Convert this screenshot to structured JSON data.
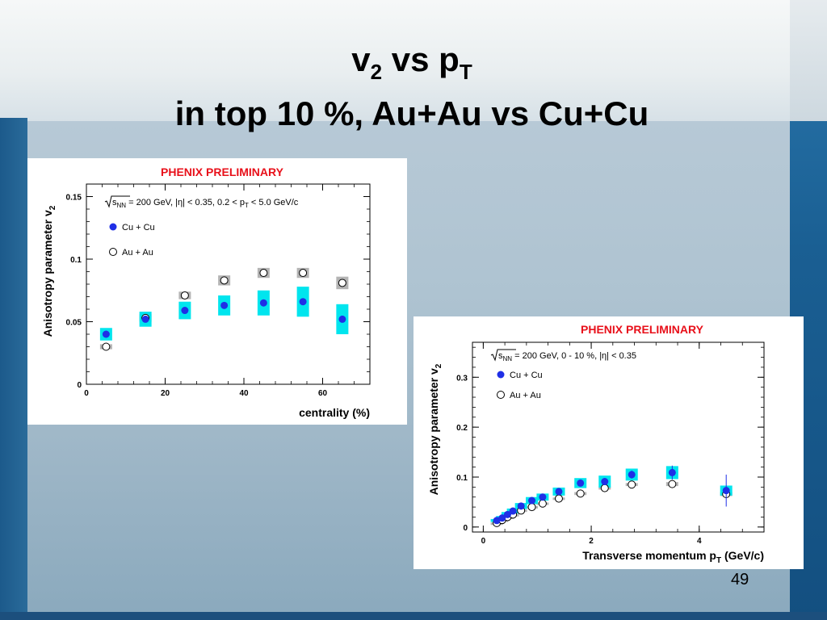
{
  "slide": {
    "title_line1_main": "v",
    "title_line1_sub1": "2",
    "title_line1_mid": " vs p",
    "title_line1_sub2": "T",
    "title_line2": "in top 10 %, Au+Au vs Cu+Cu",
    "page_number": "49"
  },
  "colors": {
    "cu_marker": "#1f2fe6",
    "cu_syst_box": "#00e5ee",
    "au_syst_box": "#b4b4b4",
    "preliminary_text": "#e8101a"
  },
  "chart_data": [
    {
      "type": "scatter",
      "title": "PHENIX PRELIMINARY",
      "xlabel": "centrality (%)",
      "ylabel": "Anisotropy parameter v",
      "ylabel_sub": "2",
      "annotation": {
        "sqrt": "s",
        "sqrt_sub": "NN",
        "text1": " = 200 GeV, |η| < 0.35, 0.2 < p",
        "text1_sub": "T",
        "text2": " < 5.0 GeV/c"
      },
      "xlim": [
        0,
        72
      ],
      "ylim": [
        0,
        0.16
      ],
      "xticks": [
        "0",
        "20",
        "40",
        "60"
      ],
      "xtick_values": [
        0,
        20,
        40,
        60
      ],
      "yticks": [
        "0",
        "0.05",
        "0.1",
        "0.15"
      ],
      "ytick_values": [
        0,
        0.05,
        0.1,
        0.15
      ],
      "series": [
        {
          "name": "Cu + Cu",
          "marker": "filled-circle",
          "x": [
            5,
            15,
            25,
            35,
            45,
            55,
            65
          ],
          "y": [
            0.04,
            0.052,
            0.059,
            0.063,
            0.065,
            0.066,
            0.052
          ],
          "syst": [
            0.005,
            0.006,
            0.007,
            0.008,
            0.01,
            0.012,
            0.012
          ]
        },
        {
          "name": "Au + Au",
          "marker": "open-circle",
          "x": [
            5,
            15,
            25,
            35,
            45,
            55,
            65
          ],
          "y": [
            0.03,
            0.053,
            0.071,
            0.083,
            0.089,
            0.089,
            0.081
          ],
          "syst": [
            0.002,
            0.003,
            0.003,
            0.004,
            0.004,
            0.004,
            0.005
          ]
        }
      ]
    },
    {
      "type": "scatter",
      "title": "PHENIX PRELIMINARY",
      "xlabel": "Transverse momentum p",
      "xlabel_sub": "T",
      "xlabel_tail": " (GeV/c)",
      "ylabel": "Anisotropy parameter v",
      "ylabel_sub": "2",
      "annotation": {
        "sqrt": "s",
        "sqrt_sub": "NN",
        "text1": " = 200 GeV, 0 - 10 %, |η| < 0.35"
      },
      "xlim": [
        -0.2,
        5.2
      ],
      "ylim": [
        -0.01,
        0.37
      ],
      "xticks": [
        "0",
        "2",
        "4"
      ],
      "xtick_values": [
        0,
        2,
        4
      ],
      "yticks": [
        "0",
        "0.1",
        "0.2",
        "0.3"
      ],
      "ytick_values": [
        0,
        0.1,
        0.2,
        0.3
      ],
      "series": [
        {
          "name": "Cu + Cu",
          "marker": "filled-circle",
          "x": [
            0.25,
            0.35,
            0.45,
            0.55,
            0.7,
            0.9,
            1.1,
            1.4,
            1.8,
            2.25,
            2.75,
            3.5,
            4.5
          ],
          "y": [
            0.013,
            0.018,
            0.025,
            0.032,
            0.042,
            0.053,
            0.06,
            0.071,
            0.088,
            0.091,
            0.105,
            0.109,
            0.073
          ],
          "syst": [
            0.003,
            0.004,
            0.005,
            0.005,
            0.006,
            0.007,
            0.007,
            0.008,
            0.01,
            0.012,
            0.012,
            0.013,
            0.01
          ],
          "stat": [
            0.002,
            0.002,
            0.002,
            0.002,
            0.002,
            0.003,
            0.003,
            0.004,
            0.005,
            0.006,
            0.008,
            0.014,
            0.032
          ]
        },
        {
          "name": "Au + Au",
          "marker": "open-circle",
          "x": [
            0.25,
            0.35,
            0.45,
            0.55,
            0.7,
            0.9,
            1.1,
            1.4,
            1.8,
            2.25,
            2.75,
            3.5,
            4.5
          ],
          "y": [
            0.008,
            0.014,
            0.02,
            0.025,
            0.033,
            0.04,
            0.047,
            0.057,
            0.067,
            0.078,
            0.085,
            0.086,
            0.066
          ],
          "syst": [
            0.001,
            0.001,
            0.001,
            0.001,
            0.002,
            0.002,
            0.002,
            0.002,
            0.003,
            0.003,
            0.003,
            0.004,
            0.004
          ]
        }
      ]
    }
  ]
}
